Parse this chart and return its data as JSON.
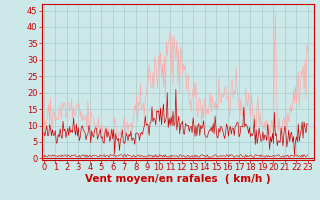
{
  "background_color": "#cce8e8",
  "grid_color": "#aacccc",
  "xlabel_display": "Vent moyen/en rafales  ( km/h )",
  "ylabel_ticks": [
    0,
    5,
    10,
    15,
    20,
    25,
    30,
    35,
    40,
    45
  ],
  "xlim": [
    -0.2,
    23.5
  ],
  "ylim": [
    -0.5,
    47
  ],
  "line_color_avg": "#cc0000",
  "line_color_gust": "#ffaaaa",
  "line_color_dir": "#cc0000",
  "x_hours": [
    0,
    1,
    2,
    3,
    4,
    5,
    6,
    7,
    8,
    9,
    10,
    11,
    12,
    13,
    14,
    15,
    16,
    17,
    18,
    19,
    20,
    21,
    22,
    23
  ],
  "font_color": "#cc0000",
  "tick_font_size": 6,
  "label_font_size": 7.5
}
